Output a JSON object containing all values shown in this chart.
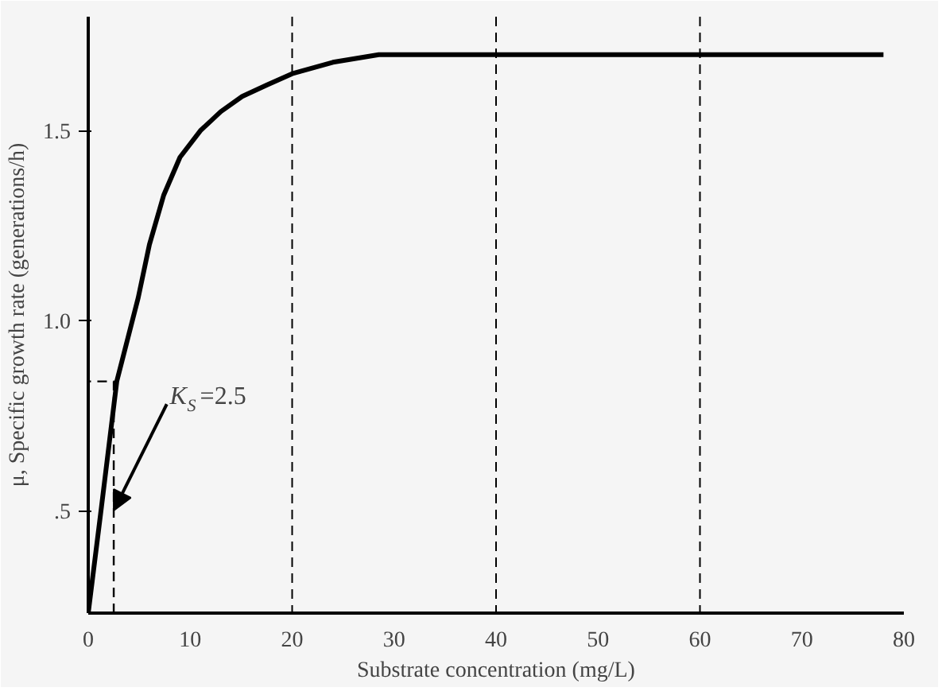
{
  "chart_data": {
    "type": "line",
    "xlabel": "Substrate concentration (mg/L)",
    "ylabel": "μ, Specific growth rate (generations/h)",
    "xlim": [
      0,
      80
    ],
    "xticks": [
      0,
      10,
      20,
      30,
      40,
      50,
      60,
      70,
      80
    ],
    "ylim": [
      0.23,
      1.8
    ],
    "yticks": [
      {
        "value": 0.5,
        "label": ".5"
      },
      {
        "value": 1.0,
        "label": "1.0"
      },
      1.5
    ],
    "grid": false,
    "marker": "none",
    "series": [
      {
        "color": "#000000",
        "line_style": "solid",
        "x": [
          0,
          1.3,
          2.8,
          4.9,
          6,
          7.4,
          9,
          11,
          13,
          15.1,
          17.5,
          20,
          24,
          28.5,
          40,
          60,
          78
        ],
        "values": [
          0.23,
          0.51,
          0.84,
          1.06,
          1.2,
          1.33,
          1.43,
          1.5,
          1.55,
          1.59,
          1.62,
          1.65,
          1.68,
          1.7,
          1.7,
          1.7,
          1.7
        ]
      },
      {
        "color": "#000000",
        "line_style": "dashed",
        "x": [
          2.5,
          2.5,
          0
        ],
        "values": [
          0.23,
          0.84,
          0.84
        ]
      }
    ],
    "ref_lines": [
      {
        "axis": "x",
        "value": 20,
        "line_style": "dashed"
      },
      {
        "axis": "x",
        "value": 40,
        "line_style": "dashed"
      },
      {
        "axis": "x",
        "value": 60,
        "line_style": "dashed"
      }
    ],
    "annotations": [
      {
        "text": "K$_{S}$=2.5",
        "x": 2.5,
        "y": 0.5
      }
    ]
  }
}
